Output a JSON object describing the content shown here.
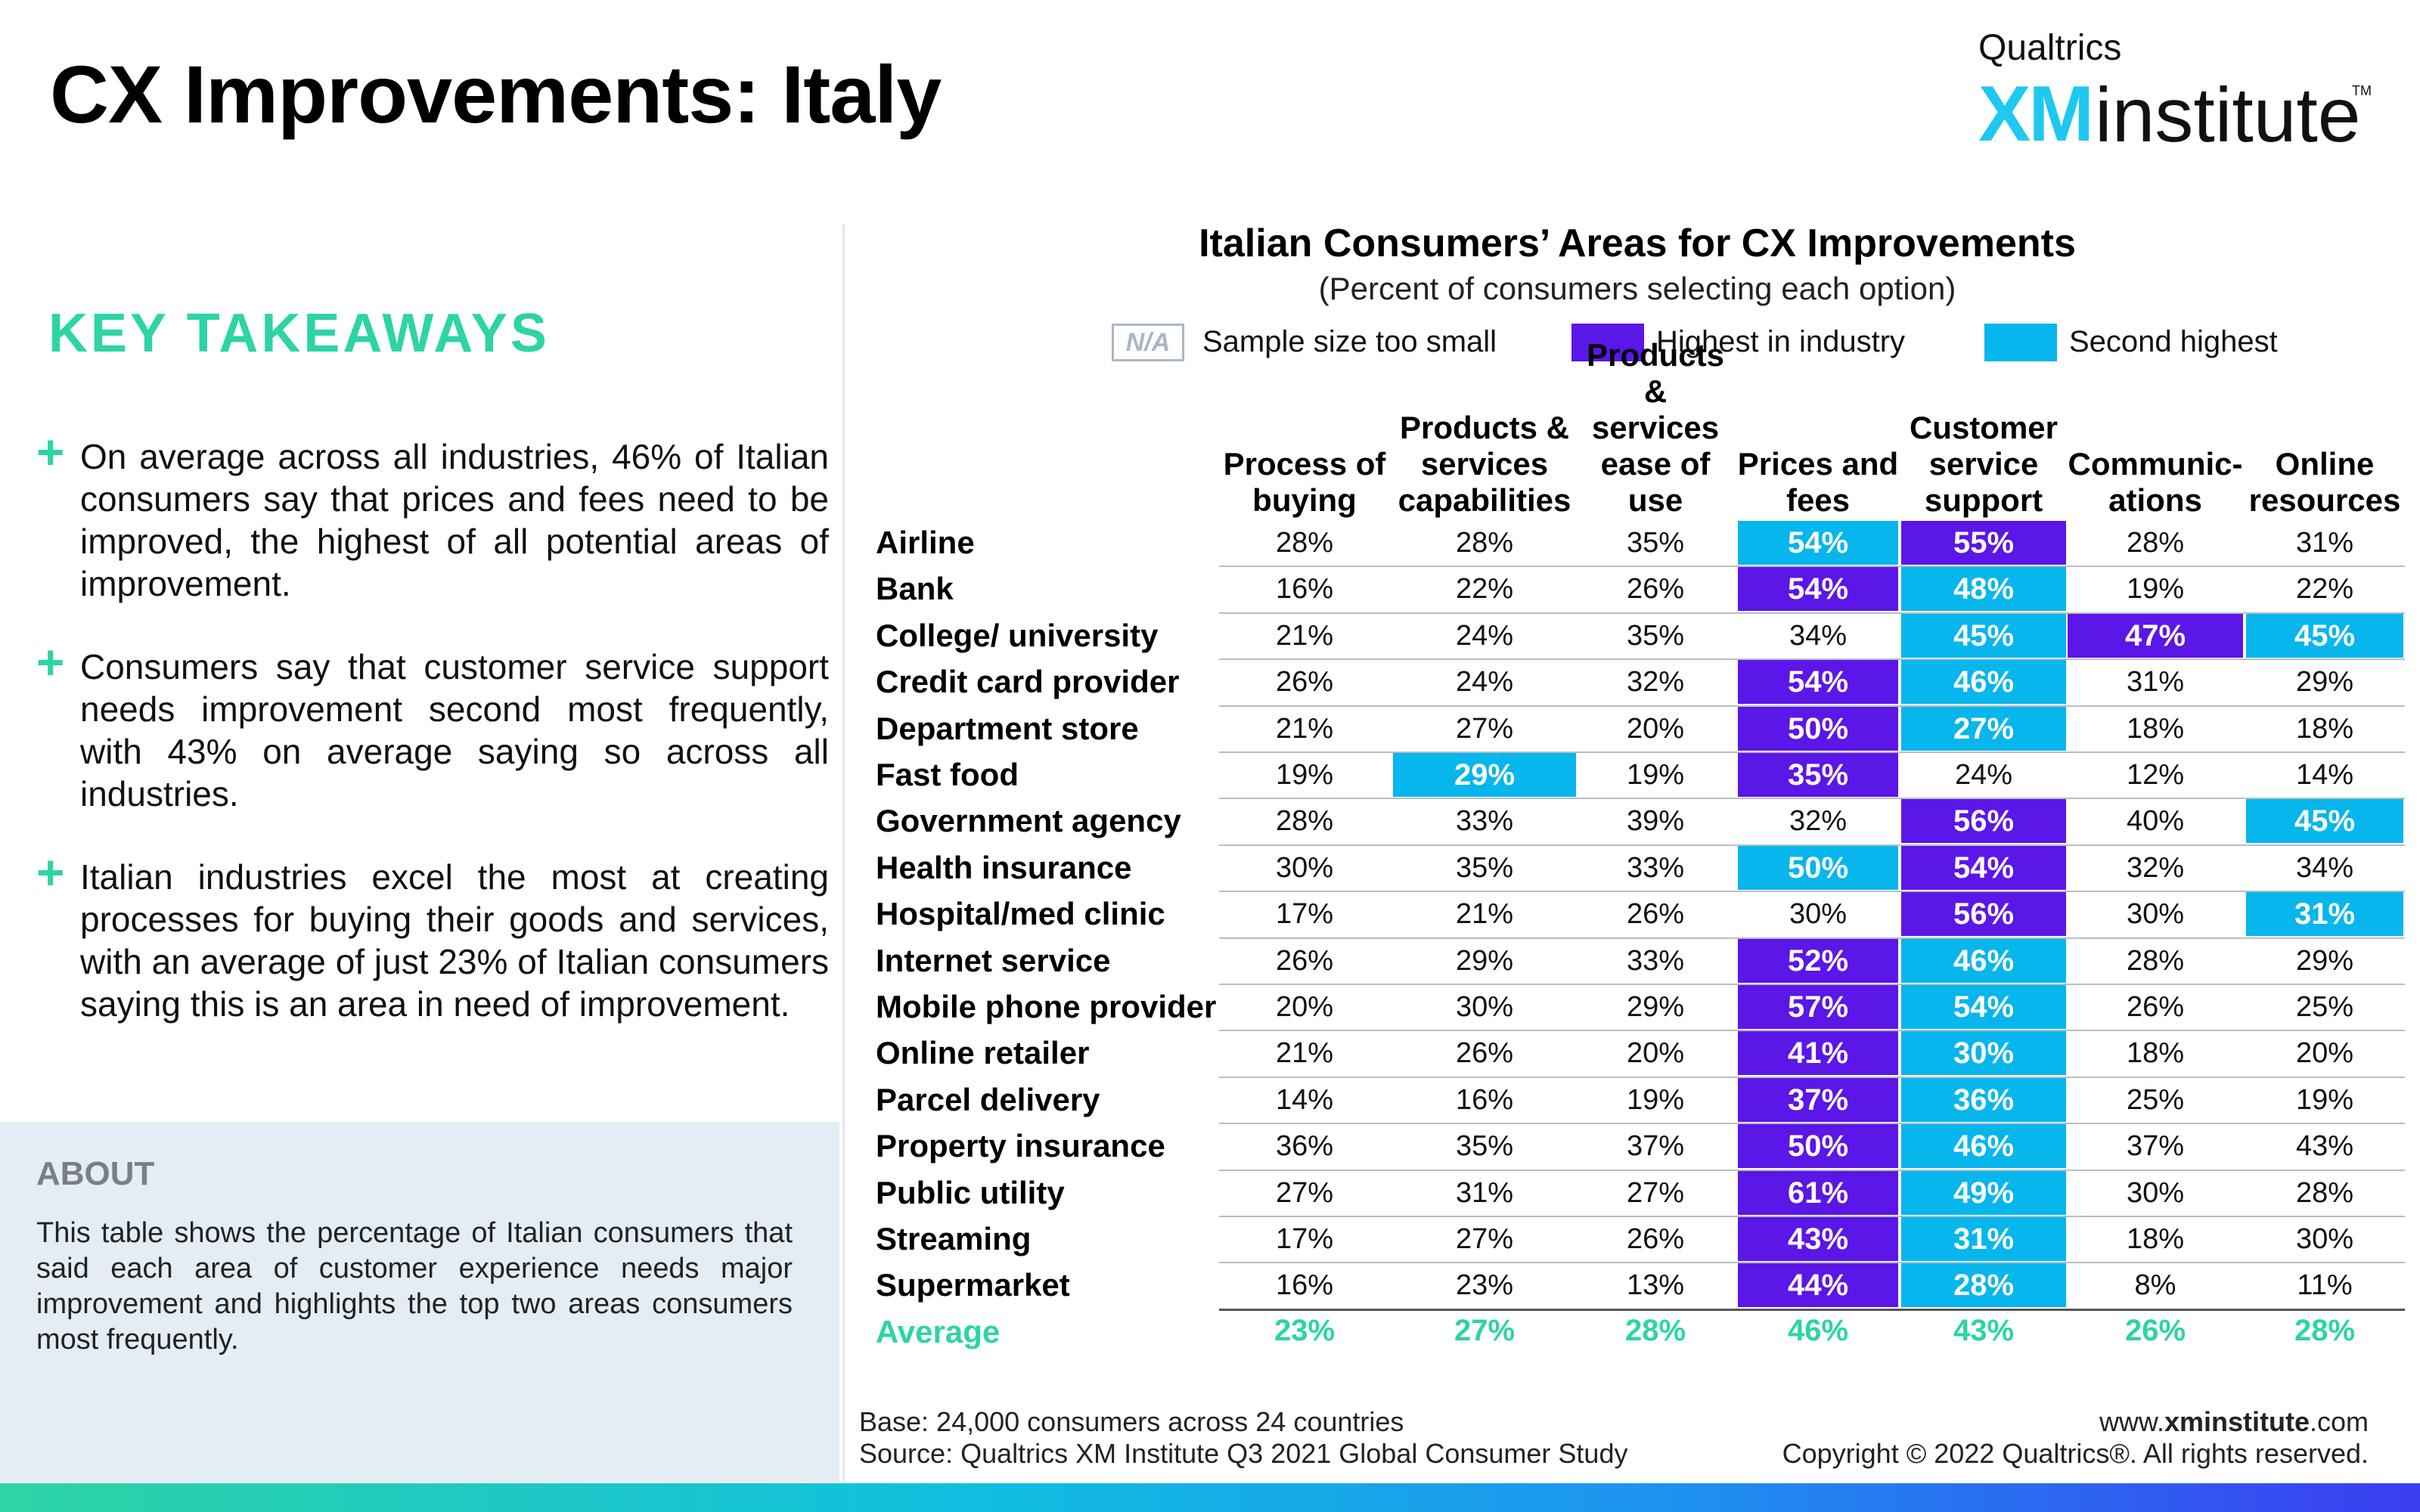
{
  "page_title": "CX Improvements: Italy",
  "logo": {
    "top": "Qualtrics",
    "xm": "XM",
    "institute": "institute",
    "tm": "TM"
  },
  "key_takeaways": {
    "title": "KEY TAKEAWAYS",
    "items": [
      "On average across all industries, 46% of Italian consumers say that prices and fees need to be improved, the highest of all potential areas of improvement.",
      "Consumers say that customer service support needs improvement second most frequently, with 43% on average saying so across all industries.",
      "Italian industries excel the most at creating processes for buying their goods and services, with an average of just 23% of Italian consumers saying this is an area in need of improvement."
    ]
  },
  "about": {
    "title": "ABOUT",
    "text": "This table shows the percentage of Italian consumers that said each area of customer experience needs major improvement and highlights the top two areas consumers most frequently."
  },
  "table": {
    "title": "Italian Consumers’ Areas for CX Improvements",
    "subtitle": "(Percent of consumers selecting each option)",
    "legend": {
      "na_badge": "N/A",
      "na_label": "Sample size too small",
      "high_label": "Highest in industry",
      "second_label": "Second highest"
    },
    "colors": {
      "high": "#5b16e8",
      "second": "#06b6ec",
      "average": "#2dd4a5"
    },
    "columns": [
      "Process of buying",
      "Products & services capabilities",
      "Products & services ease of use",
      "Prices and fees",
      "Customer service support",
      "Communic-ations",
      "Online resources"
    ],
    "rows": [
      {
        "label": "Airline",
        "values": [
          "28%",
          "28%",
          "35%",
          "54%",
          "55%",
          "28%",
          "31%"
        ],
        "high": [
          4
        ],
        "second": [
          3
        ]
      },
      {
        "label": "Bank",
        "values": [
          "16%",
          "22%",
          "26%",
          "54%",
          "48%",
          "19%",
          "22%"
        ],
        "high": [
          3
        ],
        "second": [
          4
        ]
      },
      {
        "label": "College/ university",
        "values": [
          "21%",
          "24%",
          "35%",
          "34%",
          "45%",
          "47%",
          "45%"
        ],
        "high": [
          5
        ],
        "second": [
          4,
          6
        ]
      },
      {
        "label": "Credit card provider",
        "values": [
          "26%",
          "24%",
          "32%",
          "54%",
          "46%",
          "31%",
          "29%"
        ],
        "high": [
          3
        ],
        "second": [
          4
        ]
      },
      {
        "label": "Department store",
        "values": [
          "21%",
          "27%",
          "20%",
          "50%",
          "27%",
          "18%",
          "18%"
        ],
        "high": [
          3
        ],
        "second": [
          4
        ]
      },
      {
        "label": "Fast food",
        "values": [
          "19%",
          "29%",
          "19%",
          "35%",
          "24%",
          "12%",
          "14%"
        ],
        "high": [
          3
        ],
        "second": [
          1
        ]
      },
      {
        "label": "Government agency",
        "values": [
          "28%",
          "33%",
          "39%",
          "32%",
          "56%",
          "40%",
          "45%"
        ],
        "high": [
          4
        ],
        "second": [
          6
        ]
      },
      {
        "label": "Health insurance",
        "values": [
          "30%",
          "35%",
          "33%",
          "50%",
          "54%",
          "32%",
          "34%"
        ],
        "high": [
          4
        ],
        "second": [
          3
        ]
      },
      {
        "label": "Hospital/med clinic",
        "values": [
          "17%",
          "21%",
          "26%",
          "30%",
          "56%",
          "30%",
          "31%"
        ],
        "high": [
          4
        ],
        "second": [
          6
        ]
      },
      {
        "label": "Internet service",
        "values": [
          "26%",
          "29%",
          "33%",
          "52%",
          "46%",
          "28%",
          "29%"
        ],
        "high": [
          3
        ],
        "second": [
          4
        ]
      },
      {
        "label": "Mobile phone provider",
        "values": [
          "20%",
          "30%",
          "29%",
          "57%",
          "54%",
          "26%",
          "25%"
        ],
        "high": [
          3
        ],
        "second": [
          4
        ]
      },
      {
        "label": "Online retailer",
        "values": [
          "21%",
          "26%",
          "20%",
          "41%",
          "30%",
          "18%",
          "20%"
        ],
        "high": [
          3
        ],
        "second": [
          4
        ]
      },
      {
        "label": "Parcel delivery",
        "values": [
          "14%",
          "16%",
          "19%",
          "37%",
          "36%",
          "25%",
          "19%"
        ],
        "high": [
          3
        ],
        "second": [
          4
        ]
      },
      {
        "label": "Property insurance",
        "values": [
          "36%",
          "35%",
          "37%",
          "50%",
          "46%",
          "37%",
          "43%"
        ],
        "high": [
          3
        ],
        "second": [
          4
        ]
      },
      {
        "label": "Public utility",
        "values": [
          "27%",
          "31%",
          "27%",
          "61%",
          "49%",
          "30%",
          "28%"
        ],
        "high": [
          3
        ],
        "second": [
          4
        ]
      },
      {
        "label": "Streaming",
        "values": [
          "17%",
          "27%",
          "26%",
          "43%",
          "31%",
          "18%",
          "30%"
        ],
        "high": [
          3
        ],
        "second": [
          4
        ]
      },
      {
        "label": "Supermarket",
        "values": [
          "16%",
          "23%",
          "13%",
          "44%",
          "28%",
          "8%",
          "11%"
        ],
        "high": [
          3
        ],
        "second": [
          4
        ]
      }
    ],
    "average": {
      "label": "Average",
      "values": [
        "23%",
        "27%",
        "28%",
        "46%",
        "43%",
        "26%",
        "28%"
      ]
    }
  },
  "footer": {
    "base": "Base: 24,000 consumers across 24 countries",
    "source": "Source: Qualtrics XM Institute Q3 2021 Global Consumer Study",
    "url_prefix": "www.",
    "url_bold": "xminstitute",
    "url_suffix": ".com",
    "copyright": "Copyright © 2022 Qualtrics®. All rights reserved."
  }
}
